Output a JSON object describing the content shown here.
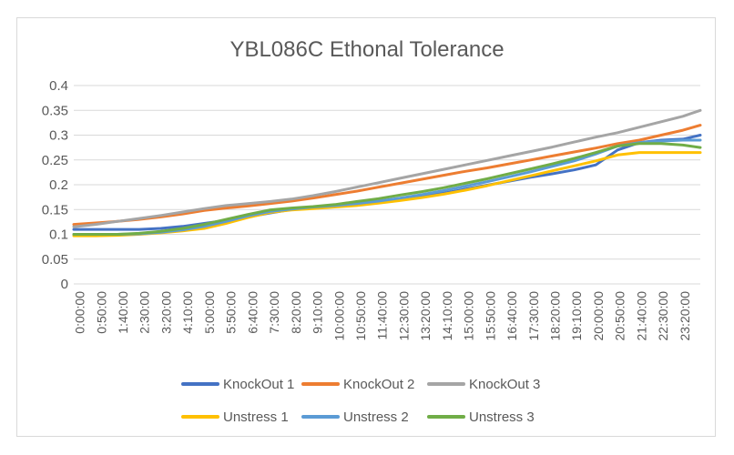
{
  "chart_data": {
    "type": "line",
    "title": "YBL086C Ethonal Tolerance",
    "xlabel": "",
    "ylabel": "",
    "ylim": [
      0,
      0.4
    ],
    "yticks": [
      "0",
      "0.05",
      "0.1",
      "0.15",
      "0.2",
      "0.25",
      "0.3",
      "0.35",
      "0.4"
    ],
    "grid": true,
    "legend_position": "bottom",
    "x_tick_labels": [
      "0:00:00",
      "0:50:00",
      "1:40:00",
      "2:30:00",
      "3:20:00",
      "4:10:00",
      "5:00:00",
      "5:50:00",
      "6:40:00",
      "7:30:00",
      "8:20:00",
      "9:10:00",
      "10:00:00",
      "10:50:00",
      "11:40:00",
      "12:30:00",
      "13:20:00",
      "14:10:00",
      "15:00:00",
      "15:50:00",
      "16:40:00",
      "17:30:00",
      "18:20:00",
      "19:10:00",
      "20:00:00",
      "20:50:00",
      "21:40:00",
      "22:30:00",
      "23:20:00"
    ],
    "x_hours": [
      0,
      0.833,
      1.667,
      2.5,
      3.333,
      4.167,
      5,
      5.833,
      6.667,
      7.5,
      8.333,
      9.167,
      10,
      10.833,
      11.667,
      12.5,
      13.333,
      14.167,
      15,
      15.833,
      16.667,
      17.5,
      18.333,
      19.167,
      20,
      20.833,
      21.667,
      22.5,
      23.333,
      24
    ],
    "series": [
      {
        "name": "KnockOut 1",
        "color": "#4472c4",
        "values": [
          0.11,
          0.11,
          0.11,
          0.11,
          0.112,
          0.116,
          0.122,
          0.128,
          0.135,
          0.143,
          0.15,
          0.155,
          0.158,
          0.162,
          0.165,
          0.17,
          0.176,
          0.183,
          0.191,
          0.199,
          0.207,
          0.215,
          0.222,
          0.23,
          0.24,
          0.27,
          0.285,
          0.29,
          0.292,
          0.3
        ]
      },
      {
        "name": "KnockOut 2",
        "color": "#ed7d31",
        "values": [
          0.12,
          0.123,
          0.126,
          0.13,
          0.135,
          0.141,
          0.148,
          0.153,
          0.157,
          0.162,
          0.167,
          0.173,
          0.18,
          0.187,
          0.195,
          0.203,
          0.211,
          0.219,
          0.227,
          0.234,
          0.242,
          0.25,
          0.258,
          0.266,
          0.274,
          0.283,
          0.29,
          0.3,
          0.31,
          0.32
        ]
      },
      {
        "name": "KnockOut 3",
        "color": "#a5a5a5",
        "values": [
          0.115,
          0.12,
          0.126,
          0.132,
          0.138,
          0.145,
          0.152,
          0.158,
          0.162,
          0.166,
          0.171,
          0.178,
          0.186,
          0.195,
          0.204,
          0.213,
          0.222,
          0.231,
          0.24,
          0.249,
          0.258,
          0.267,
          0.276,
          0.286,
          0.296,
          0.305,
          0.316,
          0.327,
          0.338,
          0.35
        ]
      },
      {
        "name": "Unstress 1",
        "color": "#ffc000",
        "values": [
          0.097,
          0.097,
          0.098,
          0.1,
          0.103,
          0.107,
          0.112,
          0.122,
          0.134,
          0.144,
          0.149,
          0.152,
          0.155,
          0.158,
          0.163,
          0.168,
          0.174,
          0.181,
          0.189,
          0.198,
          0.208,
          0.218,
          0.228,
          0.238,
          0.248,
          0.26,
          0.265,
          0.265,
          0.265,
          0.265
        ]
      },
      {
        "name": "Unstress 2",
        "color": "#5b9bd5",
        "values": [
          0.1,
          0.1,
          0.1,
          0.101,
          0.104,
          0.109,
          0.116,
          0.126,
          0.137,
          0.146,
          0.151,
          0.155,
          0.158,
          0.162,
          0.167,
          0.173,
          0.18,
          0.188,
          0.197,
          0.206,
          0.216,
          0.226,
          0.237,
          0.248,
          0.262,
          0.278,
          0.285,
          0.288,
          0.29,
          0.29
        ]
      },
      {
        "name": "Unstress 3",
        "color": "#70ad47",
        "values": [
          0.1,
          0.1,
          0.1,
          0.102,
          0.106,
          0.112,
          0.12,
          0.13,
          0.14,
          0.149,
          0.153,
          0.156,
          0.16,
          0.166,
          0.172,
          0.179,
          0.186,
          0.194,
          0.203,
          0.212,
          0.222,
          0.232,
          0.242,
          0.253,
          0.265,
          0.278,
          0.283,
          0.283,
          0.28,
          0.275
        ]
      }
    ]
  }
}
